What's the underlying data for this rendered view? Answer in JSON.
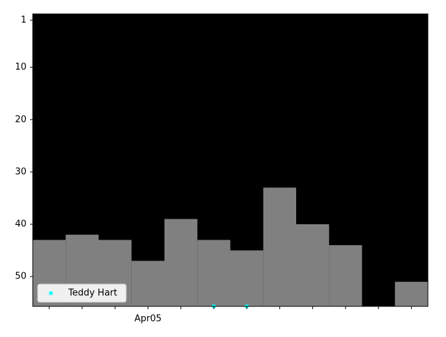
{
  "chart_data": {
    "type": "bar",
    "categories": [
      null,
      null,
      null,
      "Apr05",
      null,
      null,
      null,
      null,
      null,
      null,
      null,
      null
    ],
    "values": [
      43,
      42,
      43,
      47,
      39,
      43,
      45,
      33,
      40,
      44,
      null,
      51
    ],
    "bar_color": "#808080",
    "background": "#000000",
    "series": [
      {
        "name": "Teddy Hart",
        "color": "#00ffff",
        "values": [
          null,
          null,
          null,
          null,
          null,
          55.7,
          55.7,
          null,
          null,
          null,
          null,
          null
        ]
      }
    ],
    "ylim": [
      55.7,
      -0.2
    ],
    "yticks": [
      1,
      10,
      20,
      30,
      40,
      50
    ],
    "legend": "lower left"
  }
}
